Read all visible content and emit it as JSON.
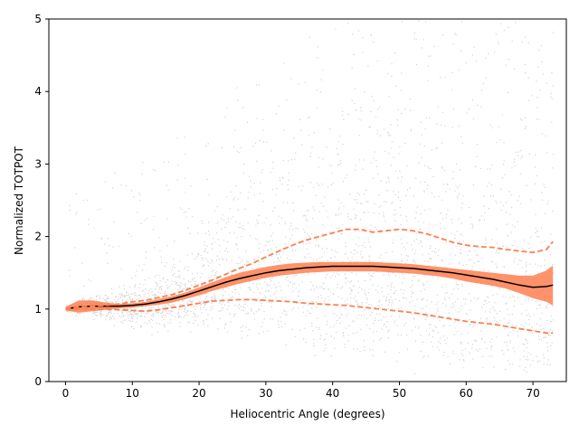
{
  "chart_data": {
    "type": "line",
    "title": "",
    "xlabel": "Heliocentric Angle (degrees)",
    "ylabel": "Normalized TOTPOT",
    "xlim": [
      -2.5,
      75
    ],
    "ylim": [
      0,
      5
    ],
    "x_ticks": [
      0,
      10,
      20,
      30,
      40,
      50,
      60,
      70
    ],
    "y_ticks": [
      0,
      1,
      2,
      3,
      4,
      5
    ],
    "grid": false,
    "colors": {
      "scatter": "#d3d3d3",
      "band": "#ff7f50",
      "mean": "#000000",
      "percentile": "#ff7f50"
    },
    "series": [
      {
        "style": "solid",
        "x": [
          0,
          2,
          4,
          6,
          8,
          10,
          12,
          14,
          16,
          18,
          20,
          22,
          24,
          26,
          28,
          30,
          32,
          34,
          36,
          38,
          40,
          42,
          44,
          46,
          48,
          50,
          52,
          54,
          56,
          58,
          60,
          62,
          64,
          66,
          68,
          70,
          72,
          73
        ],
        "y": [
          1.0,
          1.03,
          1.04,
          1.04,
          1.04,
          1.05,
          1.07,
          1.1,
          1.14,
          1.19,
          1.25,
          1.31,
          1.37,
          1.42,
          1.46,
          1.5,
          1.53,
          1.55,
          1.57,
          1.58,
          1.59,
          1.59,
          1.59,
          1.59,
          1.58,
          1.57,
          1.56,
          1.54,
          1.52,
          1.5,
          1.47,
          1.44,
          1.41,
          1.37,
          1.33,
          1.3,
          1.31,
          1.33
        ]
      },
      {
        "style": "dashed",
        "x": [
          0,
          2,
          4,
          6,
          8,
          10,
          12,
          14,
          16,
          18,
          20,
          22,
          24,
          26,
          28,
          30,
          32,
          34,
          36,
          38,
          40,
          42,
          44,
          46,
          48,
          50,
          52,
          54,
          56,
          58,
          60,
          62,
          64,
          66,
          68,
          70,
          72,
          73
        ],
        "y": [
          1.0,
          1.03,
          1.04,
          1.05,
          1.07,
          1.1,
          1.12,
          1.16,
          1.2,
          1.26,
          1.33,
          1.4,
          1.48,
          1.56,
          1.63,
          1.72,
          1.8,
          1.88,
          1.95,
          2.0,
          2.05,
          2.1,
          2.1,
          2.06,
          2.08,
          2.1,
          2.08,
          2.04,
          1.98,
          1.92,
          1.88,
          1.86,
          1.85,
          1.82,
          1.8,
          1.78,
          1.82,
          1.93
        ]
      },
      {
        "style": "dashed",
        "x": [
          0,
          2,
          4,
          6,
          8,
          10,
          12,
          14,
          16,
          18,
          20,
          22,
          24,
          26,
          28,
          30,
          32,
          34,
          36,
          38,
          40,
          42,
          44,
          46,
          48,
          50,
          52,
          54,
          56,
          58,
          60,
          62,
          64,
          66,
          68,
          70,
          72,
          73
        ],
        "y": [
          1.0,
          1.0,
          1.0,
          1.0,
          0.99,
          0.98,
          0.97,
          0.99,
          1.02,
          1.05,
          1.08,
          1.11,
          1.12,
          1.13,
          1.13,
          1.12,
          1.11,
          1.1,
          1.08,
          1.07,
          1.06,
          1.05,
          1.03,
          1.01,
          0.99,
          0.97,
          0.95,
          0.92,
          0.89,
          0.86,
          0.83,
          0.81,
          0.79,
          0.76,
          0.73,
          0.7,
          0.67,
          0.67
        ]
      }
    ],
    "band": {
      "x": [
        0,
        2,
        4,
        6,
        8,
        10,
        12,
        14,
        16,
        18,
        20,
        22,
        24,
        26,
        28,
        30,
        32,
        34,
        36,
        38,
        40,
        42,
        44,
        46,
        48,
        50,
        52,
        54,
        56,
        58,
        60,
        62,
        64,
        66,
        68,
        70,
        72,
        73
      ],
      "upper": [
        1.03,
        1.12,
        1.12,
        1.09,
        1.07,
        1.08,
        1.1,
        1.14,
        1.18,
        1.23,
        1.3,
        1.37,
        1.44,
        1.5,
        1.54,
        1.58,
        1.61,
        1.63,
        1.64,
        1.65,
        1.65,
        1.65,
        1.65,
        1.65,
        1.64,
        1.63,
        1.62,
        1.6,
        1.58,
        1.56,
        1.54,
        1.52,
        1.5,
        1.48,
        1.46,
        1.46,
        1.53,
        1.6
      ],
      "lower": [
        0.98,
        0.95,
        0.97,
        0.99,
        1.01,
        1.02,
        1.04,
        1.06,
        1.09,
        1.14,
        1.19,
        1.25,
        1.3,
        1.35,
        1.39,
        1.43,
        1.46,
        1.48,
        1.5,
        1.51,
        1.52,
        1.52,
        1.52,
        1.52,
        1.51,
        1.5,
        1.49,
        1.47,
        1.45,
        1.42,
        1.38,
        1.35,
        1.32,
        1.28,
        1.22,
        1.15,
        1.1,
        1.05
      ]
    },
    "scatter_background": {
      "n_points": 3000,
      "x_range": [
        0,
        73
      ],
      "y_range": [
        0,
        5
      ]
    }
  }
}
